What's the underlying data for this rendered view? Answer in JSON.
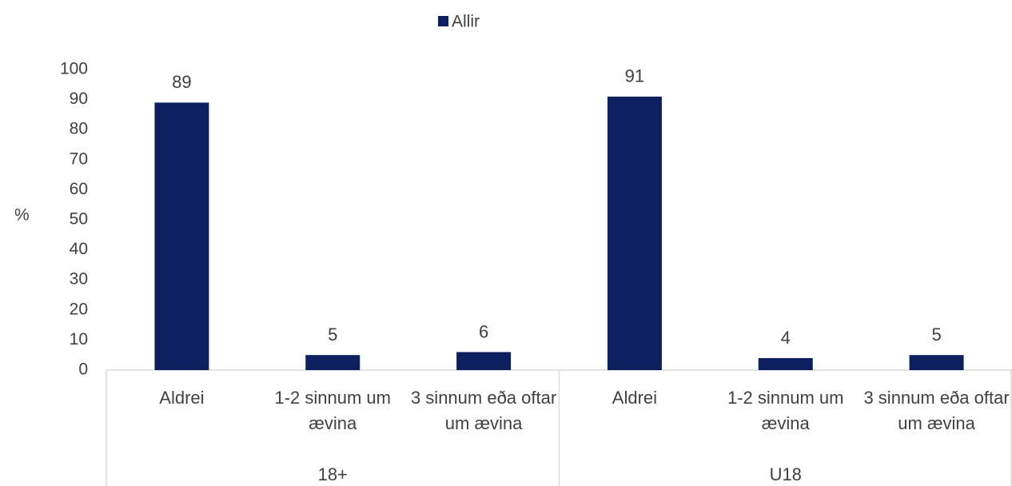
{
  "chart_data": {
    "type": "bar",
    "y_label": "%",
    "groups": [
      {
        "name": "18+",
        "categories": [
          "Aldrei",
          "1-2 sinnum um ævina",
          "3 sinnum eða oftar um ævina"
        ]
      },
      {
        "name": "U18",
        "categories": [
          "Aldrei",
          "1-2 sinnum um ævina",
          "3 sinnum eða oftar um ævina"
        ]
      }
    ],
    "series": [
      {
        "name": "Allir",
        "color": "#0c2060",
        "values": [
          89,
          5,
          6,
          91,
          4,
          5
        ]
      }
    ],
    "ylim": [
      0,
      100
    ],
    "yticks": [
      0,
      10,
      20,
      30,
      40,
      50,
      60,
      70,
      80,
      90,
      100
    ],
    "legend": "top",
    "grid": false
  }
}
